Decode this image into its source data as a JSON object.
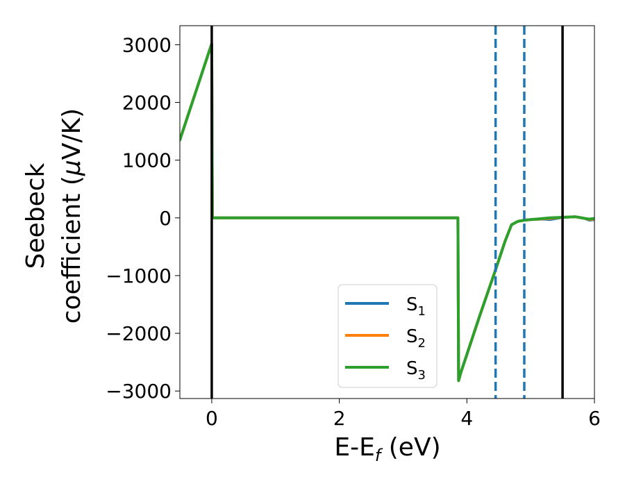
{
  "chart_data": {
    "type": "line",
    "xlabel": "E-E",
    "xlabel_sub": "f",
    "xlabel_unit": " (eV)",
    "ylabel_line1": "Seebeck",
    "ylabel_line2_pre": "coefficient  (",
    "ylabel_mu": "μ",
    "ylabel_line2_post": "V/K)",
    "xlim": [
      -0.5,
      6
    ],
    "ylim": [
      -3130,
      3330
    ],
    "xticks": [
      0,
      2,
      4,
      6
    ],
    "xtick_labels": [
      "0",
      "2",
      "4",
      "6"
    ],
    "yticks": [
      3000,
      2000,
      1000,
      0,
      -1000,
      -2000,
      -3000
    ],
    "ytick_labels": [
      "3000",
      "2000",
      "1000",
      "0",
      "−1000",
      "−2000",
      "−3000"
    ],
    "grid": false,
    "legend_position": "lower-center",
    "vlines_solid": [
      0,
      5.5
    ],
    "vlines_dashed": [
      4.45,
      4.9
    ],
    "vline_solid_color": "#000000",
    "vline_dashed_color": "#1f77b4",
    "series": [
      {
        "name": "S",
        "sub": "1",
        "color": "#1f77b4",
        "x": [
          -0.5,
          0.0,
          0.01,
          0.05,
          1.0,
          2.0,
          3.0,
          3.86,
          3.87,
          3.9,
          4.2,
          4.45,
          4.6,
          4.7,
          4.8,
          4.9,
          5.0,
          5.2,
          5.3,
          5.5,
          5.7,
          5.85,
          5.92,
          6.0
        ],
        "y": [
          1350,
          3020,
          0,
          0,
          0,
          0,
          0,
          0,
          -2820,
          -2700,
          -1700,
          -900,
          -400,
          -120,
          -60,
          -40,
          -30,
          -20,
          -30,
          10,
          20,
          -10,
          -40,
          -30
        ]
      },
      {
        "name": "S",
        "sub": "2",
        "color": "#ff7f0e",
        "x": [
          -0.5,
          0.0,
          0.01,
          0.05,
          1.0,
          2.0,
          3.0,
          3.86,
          3.87,
          3.9,
          4.2,
          4.45,
          4.6,
          4.7,
          4.8,
          4.9,
          5.0,
          5.2,
          5.3,
          5.5,
          5.7,
          5.85,
          5.92,
          6.0
        ],
        "y": [
          1350,
          3020,
          0,
          0,
          0,
          0,
          0,
          0,
          -2820,
          -2700,
          -1700,
          -900,
          -400,
          -120,
          -60,
          -40,
          -30,
          -15,
          -10,
          10,
          20,
          -10,
          -30,
          -20
        ]
      },
      {
        "name": "S",
        "sub": "3",
        "color": "#2ca02c",
        "x": [
          -0.5,
          0.0,
          0.01,
          0.05,
          1.0,
          2.0,
          3.0,
          3.86,
          3.87,
          3.9,
          4.2,
          4.45,
          4.6,
          4.7,
          4.8,
          4.9,
          5.0,
          5.2,
          5.3,
          5.5,
          5.7,
          5.85,
          5.92,
          6.0
        ],
        "y": [
          1350,
          3020,
          0,
          0,
          0,
          0,
          0,
          0,
          -2820,
          -2700,
          -1700,
          -900,
          -400,
          -120,
          -60,
          -40,
          -30,
          -10,
          0,
          10,
          20,
          -10,
          -20,
          -10
        ]
      }
    ]
  }
}
